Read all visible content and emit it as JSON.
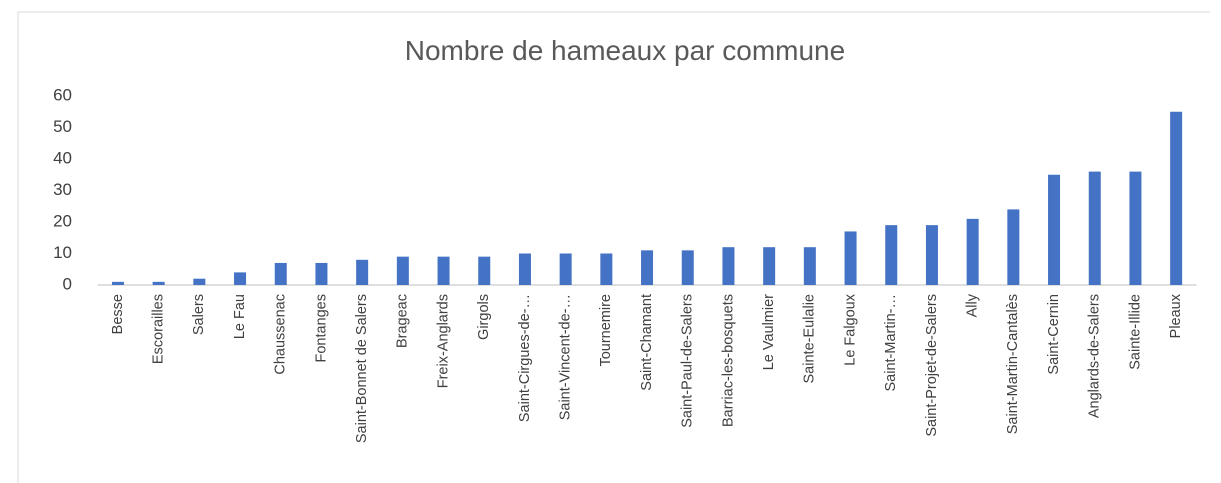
{
  "chart_data": {
    "type": "bar",
    "title": "Nombre de hameaux par commune",
    "categories": [
      "Besse",
      "Escorailles",
      "Salers",
      "Le Fau",
      "Chaussenac",
      "Fontanges",
      "Saint-Bonnet de Salers",
      "Brageac",
      "Freix-Anglards",
      "Girgols",
      "Saint-Cirgues-de-…",
      "Saint-Vincent-de-…",
      "Tournemire",
      "Saint-Chamant",
      "Saint-Paul-de-Salers",
      "Barriac-les-bosquets",
      "Le Vaulmier",
      "Sainte-Eulalie",
      "Le Falgoux",
      "Saint-Martin-…",
      "Saint-Projet-de-Salers",
      "Ally",
      "Saint-Martin-Cantalès",
      "Saint-Cernin",
      "Anglards-de-Salers",
      "Sainte-Illide",
      "Pleaux"
    ],
    "values": [
      1,
      1,
      2,
      4,
      7,
      7,
      8,
      9,
      9,
      9,
      10,
      10,
      10,
      11,
      11,
      12,
      12,
      12,
      17,
      19,
      19,
      21,
      24,
      35,
      36,
      36,
      55
    ],
    "color": "#4472c4",
    "ylim": [
      0,
      60
    ],
    "yticks": [
      0,
      10,
      20,
      30,
      40,
      50,
      60
    ],
    "grid": false
  }
}
